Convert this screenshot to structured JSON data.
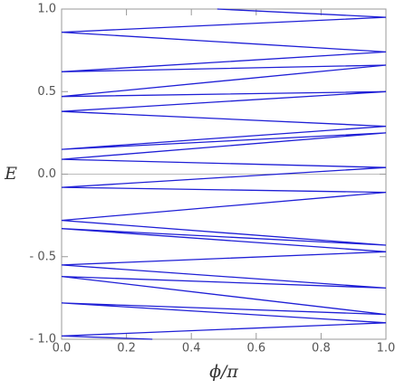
{
  "chart_data": {
    "type": "line",
    "xlabel": "ϕ/π",
    "ylabel": "E",
    "series": [
      {
        "color": "#1f1fd6",
        "x": [
          0.48,
          1,
          0,
          1,
          0,
          1,
          0,
          1,
          0,
          1,
          0,
          1,
          0,
          1,
          0,
          1,
          0,
          1,
          0,
          1,
          0,
          1,
          0,
          1,
          0,
          1,
          0,
          0.28
        ],
        "values": [
          1.0,
          0.95,
          0.86,
          0.74,
          0.62,
          0.66,
          0.47,
          0.5,
          0.38,
          0.29,
          0.15,
          0.25,
          0.09,
          0.04,
          -0.08,
          -0.11,
          -0.28,
          -0.43,
          -0.33,
          -0.47,
          -0.55,
          -0.69,
          -0.62,
          -0.85,
          -0.78,
          -0.9,
          -0.98,
          -1.0
        ]
      }
    ],
    "xlim": [
      0,
      1
    ],
    "ylim": [
      -1,
      1
    ],
    "xticks": [
      {
        "value": 0,
        "label": "0.0"
      },
      {
        "value": 0.2,
        "label": "0.2"
      },
      {
        "value": 0.4,
        "label": "0.4"
      },
      {
        "value": 0.6,
        "label": "0.6"
      },
      {
        "value": 0.8,
        "label": "0.8"
      },
      {
        "value": 1,
        "label": "1.0"
      }
    ],
    "yticks": [
      {
        "value": -1,
        "label": "- 1.0"
      },
      {
        "value": -0.5,
        "label": "- 0.5"
      },
      {
        "value": 0,
        "label": "0.0"
      },
      {
        "value": 0.5,
        "label": "0.5"
      },
      {
        "value": 1,
        "label": "1.0"
      }
    ],
    "zero_line": true
  }
}
